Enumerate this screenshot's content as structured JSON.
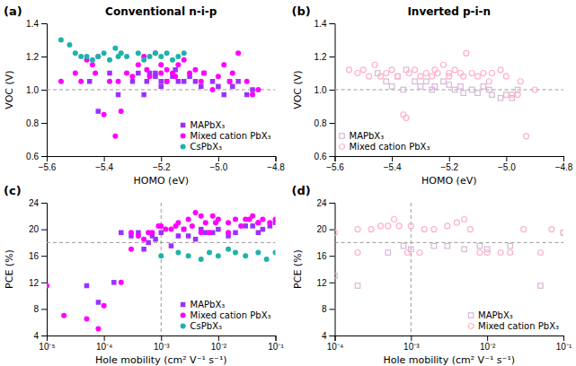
{
  "chart_data": [
    {
      "type": "scatter",
      "title": "Conventional n-i-p",
      "annotations": [
        "(a)"
      ],
      "xlabel": "HOMO (eV)",
      "ylabel": "VOC (V)",
      "xlim": [
        -5.6,
        -4.8
      ],
      "ylim": [
        0.6,
        1.4
      ],
      "xticks": [
        {
          "value": -5.6,
          "label": "−5.6"
        },
        {
          "value": -5.4,
          "label": "−5.4"
        },
        {
          "value": -5.2,
          "label": "−5.2"
        },
        {
          "value": -5.0,
          "label": "−5.0"
        },
        {
          "value": -4.8,
          "label": "−4.8"
        }
      ],
      "yticks": [
        0.6,
        0.8,
        {
          "value": 1.0,
          "label": "1.0"
        },
        1.2,
        1.4
      ],
      "hline": 1.0,
      "legend": "lower right",
      "grid": false,
      "series": [
        {
          "name": "MAPbX₃",
          "color": "#9B30FF",
          "marker": "square",
          "x": [
            -5.45,
            -5.42,
            -5.38,
            -5.35,
            -5.3,
            -5.28,
            -5.26,
            -5.25,
            -5.24,
            -5.22,
            -5.22,
            -5.2,
            -5.2,
            -5.18,
            -5.16,
            -5.15,
            -5.14,
            -5.12,
            -5.1,
            -5.08,
            -5.06,
            -5.05,
            -5.02,
            -5.0,
            -4.98,
            -4.96,
            -4.95,
            -4.93,
            -4.9,
            -4.88
          ],
          "values": [
            1.05,
            0.87,
            1.1,
            0.97,
            1.05,
            1.1,
            0.97,
            1.05,
            1.1,
            1.1,
            1.08,
            1.05,
            1.02,
            1.05,
            1.08,
            1.12,
            1.05,
            1.05,
            1.08,
            1.05,
            1.02,
            1.1,
            1.05,
            1.02,
            0.97,
            1.05,
            1.02,
            1.05,
            0.97,
            1.0
          ]
        },
        {
          "name": "Mixed cation PbX₃",
          "color": "#FF00FF",
          "marker": "circle",
          "x": [
            -5.55,
            -5.5,
            -5.48,
            -5.46,
            -5.44,
            -5.43,
            -5.42,
            -5.4,
            -5.38,
            -5.36,
            -5.35,
            -5.34,
            -5.32,
            -5.3,
            -5.28,
            -5.26,
            -5.25,
            -5.24,
            -5.22,
            -5.2,
            -5.2,
            -5.18,
            -5.18,
            -5.16,
            -5.15,
            -5.14,
            -5.12,
            -5.1,
            -5.08,
            -5.06,
            -5.05,
            -5.02,
            -5.0,
            -4.98,
            -4.96,
            -4.95,
            -4.93,
            -4.9,
            -4.88,
            -4.86
          ],
          "values": [
            1.05,
            1.1,
            1.05,
            1.18,
            1.15,
            1.1,
            1.2,
            0.85,
            1.05,
            0.72,
            1.05,
            0.87,
            1.1,
            1.08,
            1.15,
            1.2,
            1.12,
            1.08,
            1.22,
            1.15,
            1.1,
            1.05,
            1.12,
            1.1,
            1.08,
            1.15,
            1.18,
            1.1,
            1.12,
            1.05,
            1.1,
            1.0,
            1.08,
            1.15,
            1.05,
            1.1,
            1.22,
            1.05,
            0.97,
            1.0
          ]
        },
        {
          "name": "CsPbX₃",
          "color": "#20B2AA",
          "marker": "circle",
          "x": [
            -5.55,
            -5.52,
            -5.5,
            -5.48,
            -5.46,
            -5.44,
            -5.42,
            -5.4,
            -5.38,
            -5.36,
            -5.35,
            -5.34,
            -5.32,
            -5.28,
            -5.26,
            -5.24,
            -5.22,
            -5.2,
            -5.18,
            -5.16,
            -5.14,
            -5.12
          ],
          "values": [
            1.3,
            1.27,
            1.22,
            1.2,
            1.2,
            1.18,
            1.2,
            1.22,
            1.18,
            1.25,
            1.2,
            1.22,
            1.2,
            1.22,
            1.18,
            1.2,
            1.22,
            1.2,
            1.22,
            1.18,
            1.2,
            1.22
          ]
        }
      ]
    },
    {
      "type": "scatter",
      "title": "Inverted p-i-n",
      "annotations": [
        "(b)"
      ],
      "xlabel": "HOMO (eV)",
      "ylabel": "VOC (V)",
      "xlim": [
        -5.6,
        -4.8
      ],
      "ylim": [
        0.6,
        1.4
      ],
      "xticks": [
        {
          "value": -5.6,
          "label": "−5.6"
        },
        {
          "value": -5.4,
          "label": "−5.4"
        },
        {
          "value": -5.2,
          "label": "−5.2"
        },
        {
          "value": -5.0,
          "label": "−5.0"
        },
        {
          "value": -4.8,
          "label": "−4.8"
        }
      ],
      "yticks": [
        0.6,
        0.8,
        {
          "value": 1.0,
          "label": "1.0"
        },
        1.2,
        1.4
      ],
      "hline": 1.0,
      "legend": "lower left",
      "grid": false,
      "series": [
        {
          "name": "MAPbX₃",
          "color": "#D8B8D8",
          "marker": "square-open",
          "x": [
            -5.45,
            -5.42,
            -5.4,
            -5.38,
            -5.36,
            -5.35,
            -5.32,
            -5.3,
            -5.28,
            -5.26,
            -5.25,
            -5.22,
            -5.2,
            -5.18,
            -5.16,
            -5.15,
            -5.12,
            -5.1,
            -5.08,
            -5.06,
            -5.05,
            -5.02,
            -5.0,
            -4.98,
            -4.96
          ],
          "values": [
            1.1,
            1.05,
            1.02,
            1.08,
            1.0,
            1.12,
            1.05,
            1.02,
            1.05,
            1.0,
            1.02,
            1.05,
            1.03,
            1.0,
            1.02,
            0.98,
            1.0,
            0.98,
            1.02,
            1.0,
            0.97,
            0.95,
            0.97,
            0.95,
            1.0
          ]
        },
        {
          "name": "Mixed cation PbX₃",
          "color": "#FFB0C8",
          "marker": "circle-open",
          "x": [
            -5.55,
            -5.52,
            -5.5,
            -5.48,
            -5.46,
            -5.44,
            -5.42,
            -5.4,
            -5.38,
            -5.36,
            -5.35,
            -5.34,
            -5.32,
            -5.3,
            -5.28,
            -5.26,
            -5.25,
            -5.24,
            -5.22,
            -5.2,
            -5.2,
            -5.18,
            -5.16,
            -5.15,
            -5.14,
            -5.12,
            -5.1,
            -5.08,
            -5.06,
            -5.05,
            -5.02,
            -5.0,
            -4.98,
            -4.96,
            -4.95,
            -4.93,
            -4.9
          ],
          "values": [
            1.12,
            1.1,
            1.12,
            1.08,
            1.15,
            1.08,
            1.1,
            1.12,
            1.08,
            0.85,
            0.83,
            1.1,
            1.12,
            1.08,
            1.1,
            1.08,
            1.12,
            1.1,
            1.15,
            1.1,
            1.08,
            1.12,
            1.1,
            1.08,
            1.22,
            1.1,
            1.08,
            1.1,
            1.05,
            1.1,
            1.12,
            1.08,
            0.97,
            0.97,
            1.05,
            0.72,
            1.0
          ]
        }
      ]
    },
    {
      "type": "scatter",
      "annotations": [
        "(c)"
      ],
      "xlabel": "Hole mobility (cm² V⁻¹ s⁻¹)",
      "ylabel": "PCE (%)",
      "log": "x",
      "xlim": [
        1e-05,
        0.1
      ],
      "ylim": [
        4,
        24
      ],
      "xticks": [
        {
          "value": 1e-05,
          "label": "10⁻⁵"
        },
        {
          "value": 0.0001,
          "label": "10⁻⁴"
        },
        {
          "value": 0.001,
          "label": "10⁻³"
        },
        {
          "value": 0.01,
          "label": "10⁻²"
        },
        {
          "value": 0.1,
          "label": "10⁻¹"
        }
      ],
      "yticks": [
        4,
        8,
        12,
        16,
        20,
        24
      ],
      "hline": 18.0,
      "vline": 0.001,
      "legend": "lower right",
      "grid": false,
      "series": [
        {
          "name": "MAPbX₃",
          "color": "#9B30FF",
          "marker": "square",
          "x": [
            0.0002,
            0.0003,
            0.0004,
            0.0005,
            0.0006,
            0.0007,
            0.0008,
            0.001,
            0.0015,
            0.002,
            0.0025,
            0.003,
            0.004,
            0.005,
            0.006,
            0.008,
            0.01,
            0.015,
            0.02,
            0.03,
            0.04,
            0.05,
            0.06,
            0.08,
            0.1,
            0.00015,
            5e-05,
            8e-05
          ],
          "values": [
            19.5,
            19.0,
            19.5,
            17.0,
            18.0,
            19.0,
            18.5,
            19.5,
            17.5,
            19.0,
            20.0,
            19.0,
            18.5,
            20.0,
            19.5,
            19.5,
            20.0,
            19.0,
            19.5,
            20.5,
            20.5,
            19.5,
            20.0,
            20.5,
            21.0,
            12.0,
            11.5,
            9.0
          ]
        },
        {
          "name": "Mixed cation PbX₃",
          "color": "#FF00FF",
          "marker": "circle",
          "x": [
            1e-05,
            2e-05,
            5e-05,
            8e-05,
            0.0001,
            0.0002,
            0.0003,
            0.0005,
            0.0007,
            0.001,
            0.0015,
            0.002,
            0.003,
            0.004,
            0.005,
            0.006,
            0.008,
            0.01,
            0.015,
            0.02,
            0.03,
            0.04,
            0.05,
            0.06,
            0.08,
            0.1,
            0.0003,
            0.0004,
            0.0006,
            0.0009,
            0.0012,
            0.0018,
            0.0025,
            0.0035,
            0.005,
            0.007,
            0.009,
            0.015,
            0.025,
            0.035,
            0.05
          ],
          "values": [
            11.5,
            7.0,
            6.5,
            5.0,
            8.5,
            12.0,
            17.0,
            18.5,
            19.5,
            20.5,
            20.0,
            21.0,
            21.5,
            22.5,
            22.0,
            21.0,
            22.0,
            21.5,
            21.0,
            21.5,
            21.5,
            22.0,
            21.0,
            21.5,
            21.0,
            21.5,
            19.5,
            19.0,
            19.5,
            20.5,
            20.0,
            20.5,
            20.0,
            20.5,
            19.5,
            19.5,
            21.0,
            19.5,
            20.5,
            21.5,
            21.0
          ]
        },
        {
          "name": "CsPbX₃",
          "color": "#20B2AA",
          "marker": "circle",
          "x": [
            0.001,
            0.002,
            0.003,
            0.005,
            0.007,
            0.01,
            0.015,
            0.02,
            0.03,
            0.05,
            0.07,
            0.1
          ],
          "values": [
            16.0,
            16.5,
            16.0,
            15.5,
            16.5,
            16.0,
            17.0,
            16.5,
            16.0,
            16.5,
            15.5,
            16.5
          ]
        }
      ]
    },
    {
      "type": "scatter",
      "annotations": [
        "(d)"
      ],
      "xlabel": "Hole mobility (cm² V⁻¹ s⁻¹)",
      "ylabel": "PCE (%)",
      "log": "x",
      "xlim": [
        0.0001,
        0.1
      ],
      "ylim": [
        4,
        24
      ],
      "xticks": [
        {
          "value": 0.0001,
          "label": "10⁻⁴"
        },
        {
          "value": 0.001,
          "label": "10⁻³"
        },
        {
          "value": 0.01,
          "label": "10⁻²"
        },
        {
          "value": 0.1,
          "label": "10⁻¹"
        }
      ],
      "yticks": [
        4,
        8,
        12,
        16,
        20,
        24
      ],
      "hline": 18.0,
      "vline": 0.001,
      "legend": "lower right",
      "grid": false,
      "series": [
        {
          "name": "MAPbX₃",
          "color": "#D8B8D8",
          "marker": "square-open",
          "x": [
            0.0001,
            0.0002,
            0.0005,
            0.0008,
            0.001,
            0.002,
            0.003,
            0.005,
            0.008,
            0.01,
            0.02,
            0.05,
            0.1
          ],
          "values": [
            13.0,
            11.5,
            16.5,
            17.5,
            17.0,
            17.5,
            17.5,
            17.0,
            17.5,
            17.0,
            17.5,
            11.5,
            19.5
          ]
        },
        {
          "name": "Mixed cation PbX₃",
          "color": "#FFB0C8",
          "marker": "circle-open",
          "x": [
            0.0001,
            0.0002,
            0.0003,
            0.0005,
            0.0007,
            0.001,
            0.0015,
            0.002,
            0.003,
            0.004,
            0.005,
            0.006,
            0.008,
            0.01,
            0.015,
            0.02,
            0.03,
            0.05,
            0.07,
            0.1,
            0.0002,
            0.0004,
            0.0006,
            0.0009,
            0.0013
          ],
          "values": [
            19.5,
            16.5,
            20.0,
            20.5,
            20.5,
            20.5,
            20.0,
            20.0,
            20.5,
            21.0,
            21.5,
            20.0,
            16.5,
            16.5,
            16.5,
            16.5,
            20.0,
            16.5,
            20.0,
            19.5,
            20.0,
            20.5,
            21.5,
            16.5,
            16.5
          ]
        }
      ]
    }
  ]
}
